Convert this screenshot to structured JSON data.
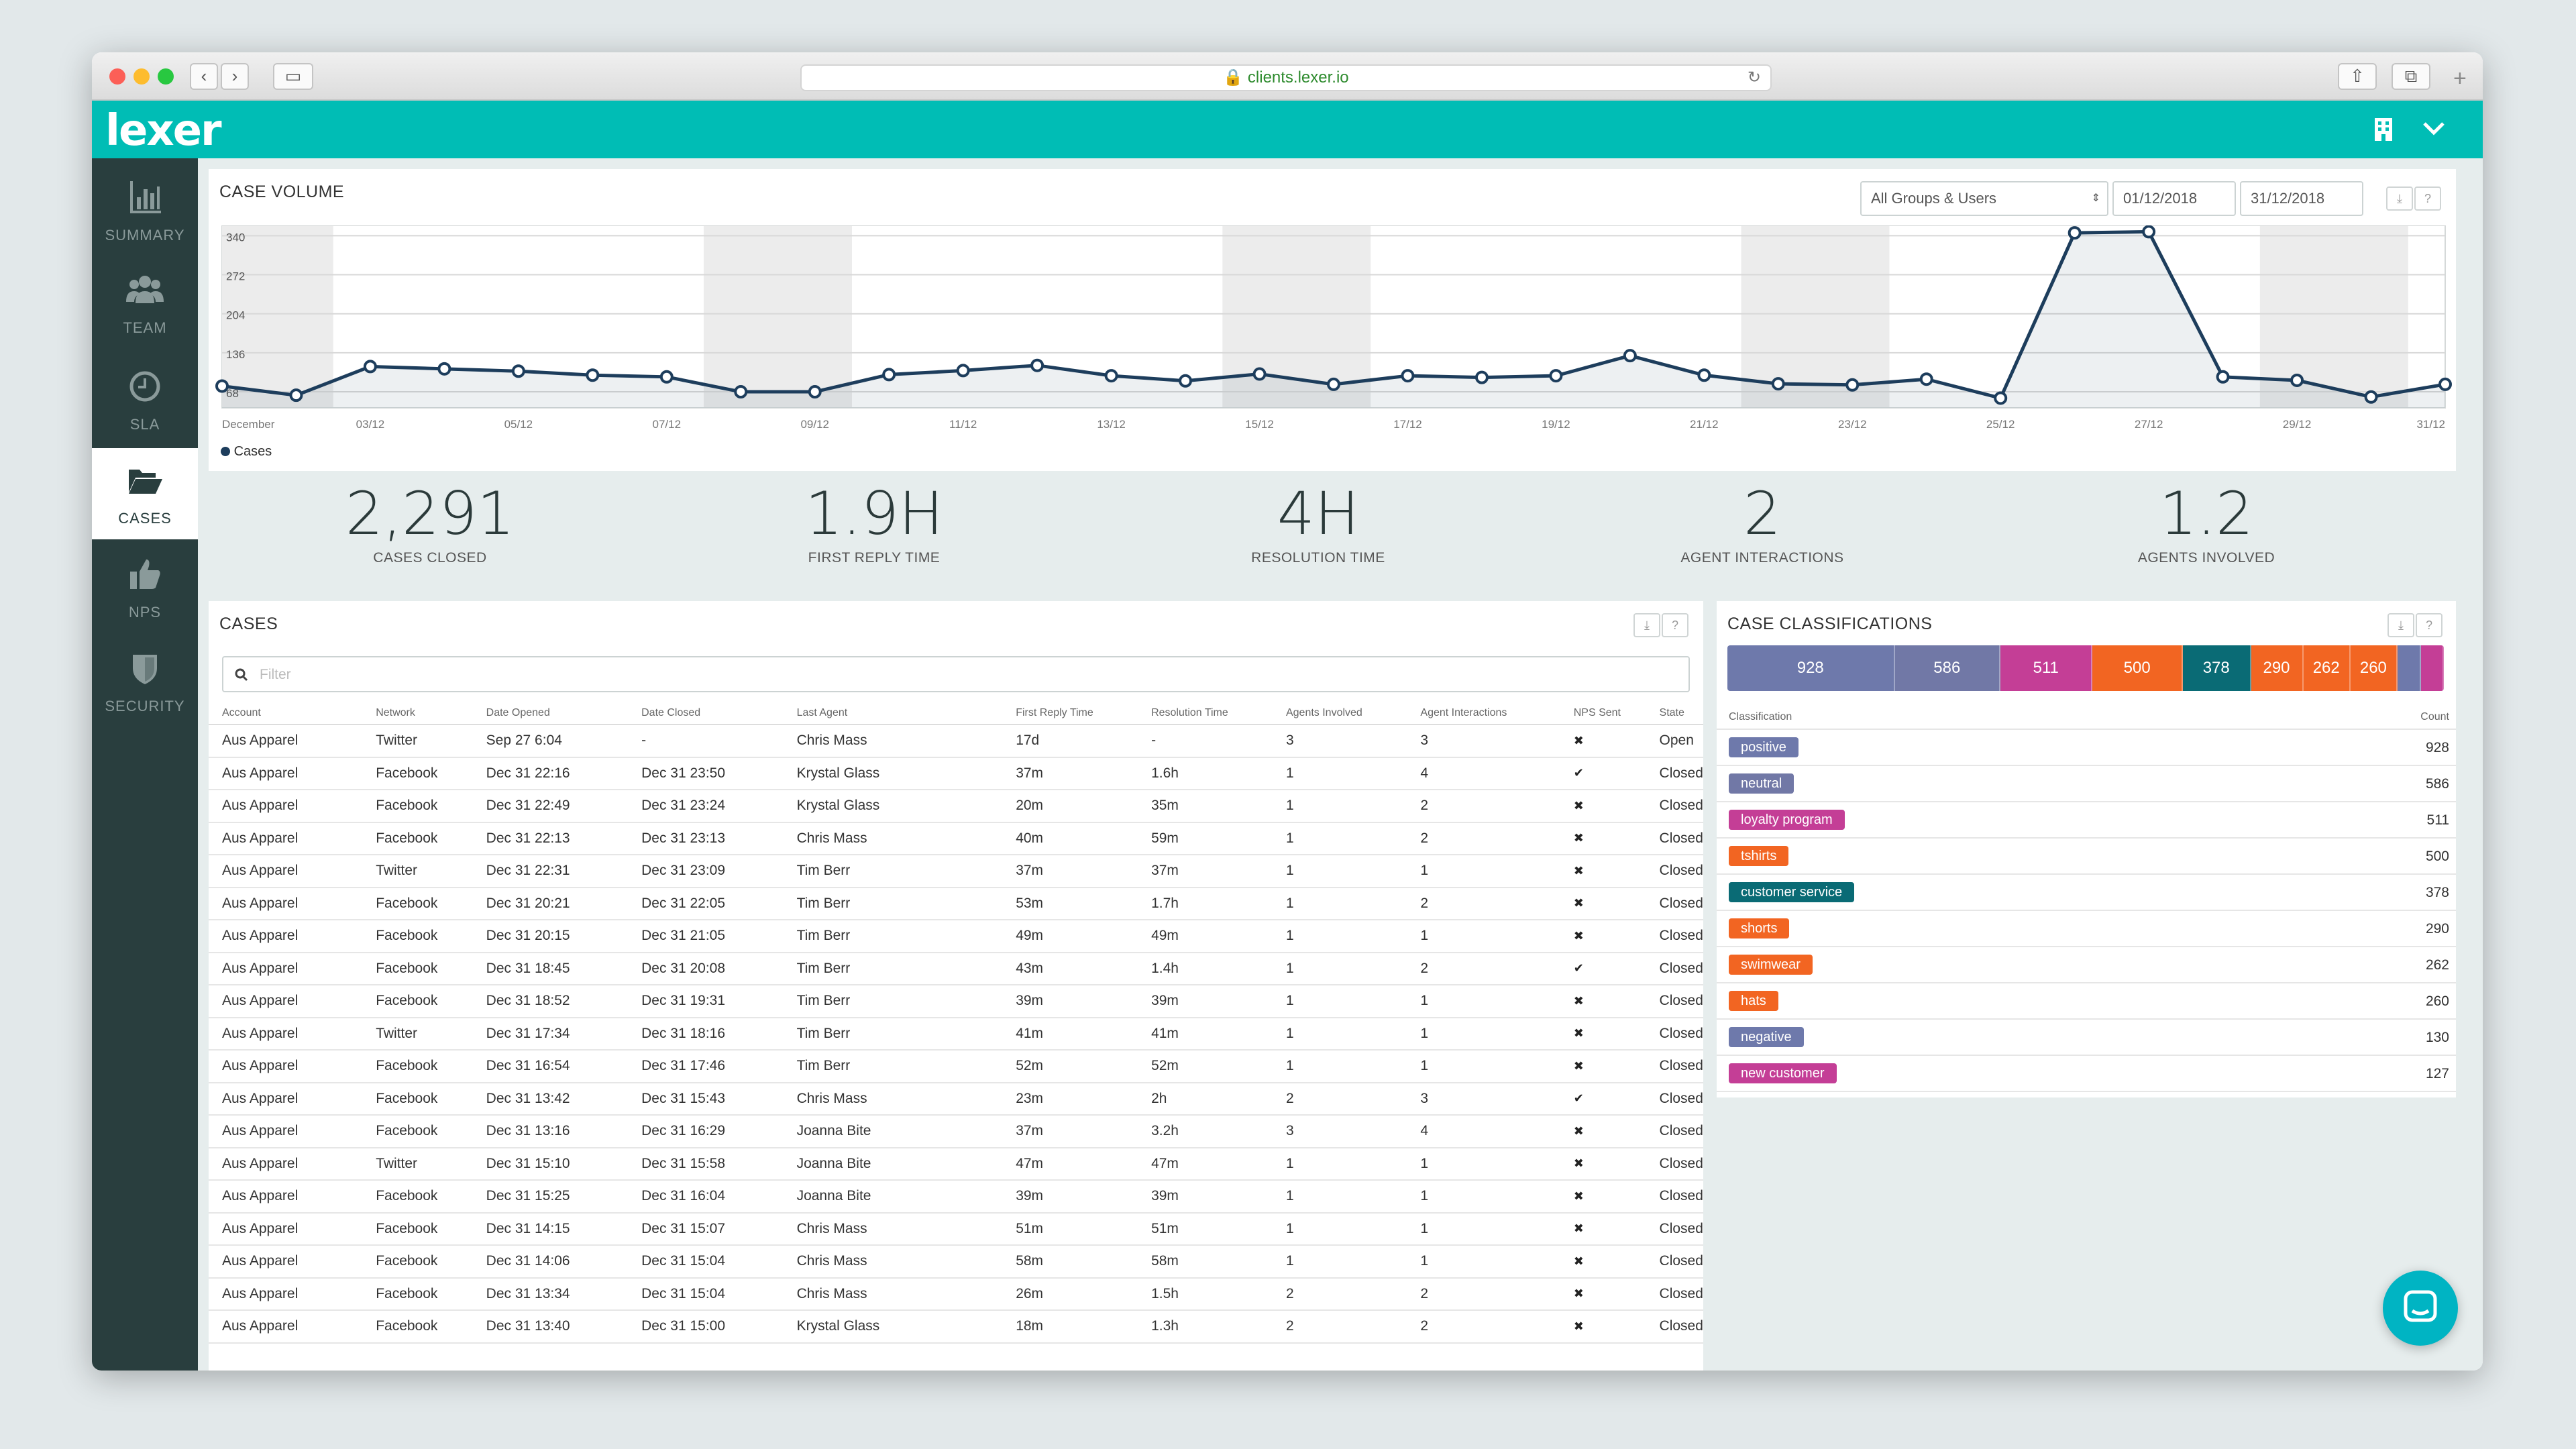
{
  "browser": {
    "url": "clients.lexer.io"
  },
  "app": {
    "logo": "lexer"
  },
  "sidebar": {
    "items": [
      {
        "label": "SUMMARY",
        "icon": "bar-chart-icon"
      },
      {
        "label": "TEAM",
        "icon": "users-icon"
      },
      {
        "label": "SLA",
        "icon": "clock-icon"
      },
      {
        "label": "CASES",
        "icon": "folder-open-icon",
        "active": true
      },
      {
        "label": "NPS",
        "icon": "thumbs-up-icon"
      },
      {
        "label": "SECURITY",
        "icon": "shield-icon"
      }
    ]
  },
  "case_volume": {
    "title": "CASE VOLUME",
    "group_select": "All Groups & Users",
    "date_from": "01/12/2018",
    "date_to": "31/12/2018",
    "download_icon": "⤓",
    "help_icon": "?"
  },
  "chart_data": {
    "type": "line",
    "title": "CASE VOLUME",
    "x_tick_labels": [
      "December",
      "03/12",
      "05/12",
      "07/12",
      "09/12",
      "11/12",
      "13/12",
      "15/12",
      "17/12",
      "19/12",
      "21/12",
      "23/12",
      "25/12",
      "27/12",
      "29/12",
      "31/12"
    ],
    "y_tick_labels": [
      "340",
      "272",
      "204",
      "136",
      "68"
    ],
    "ylim": [
      40,
      358
    ],
    "grid": true,
    "legend": "bottom-left",
    "series": [
      {
        "name": "Cases",
        "color": "#1d3d5c",
        "x": [
          1,
          2,
          3,
          4,
          5,
          6,
          7,
          8,
          9,
          10,
          11,
          12,
          13,
          14,
          15,
          16,
          17,
          18,
          19,
          20,
          21,
          22,
          23,
          24,
          25,
          26,
          27,
          28,
          29,
          30,
          31
        ],
        "values": [
          78,
          62,
          112,
          108,
          104,
          97,
          94,
          68,
          68,
          98,
          105,
          114,
          96,
          87,
          99,
          81,
          96,
          93,
          96,
          131,
          97,
          82,
          80,
          90,
          57,
          345,
          347,
          94,
          88,
          59,
          81
        ]
      }
    ]
  },
  "stats": [
    {
      "value": "2,291",
      "label": "CASES CLOSED"
    },
    {
      "value": "1.9H",
      "label": "FIRST REPLY TIME"
    },
    {
      "value": "4H",
      "label": "RESOLUTION TIME"
    },
    {
      "value": "2",
      "label": "AGENT INTERACTIONS"
    },
    {
      "value": "1.2",
      "label": "AGENTS INVOLVED"
    }
  ],
  "cases": {
    "title": "CASES",
    "filter_placeholder": "Filter",
    "columns": [
      "Account",
      "Network",
      "Date Opened",
      "Date Closed",
      "Last Agent",
      "First Reply Time",
      "Resolution Time",
      "Agents Involved",
      "Agent Interactions",
      "NPS Sent",
      "State"
    ],
    "rows": [
      [
        "Aus Apparel",
        "Twitter",
        "Sep 27 6:04",
        "-",
        "Chris Mass",
        "17d",
        "-",
        "3",
        "3",
        "✖",
        "Open"
      ],
      [
        "Aus Apparel",
        "Facebook",
        "Dec 31 22:16",
        "Dec 31 23:50",
        "Krystal Glass",
        "37m",
        "1.6h",
        "1",
        "4",
        "✔",
        "Closed"
      ],
      [
        "Aus Apparel",
        "Facebook",
        "Dec 31 22:49",
        "Dec 31 23:24",
        "Krystal Glass",
        "20m",
        "35m",
        "1",
        "2",
        "✖",
        "Closed"
      ],
      [
        "Aus Apparel",
        "Facebook",
        "Dec 31 22:13",
        "Dec 31 23:13",
        "Chris Mass",
        "40m",
        "59m",
        "1",
        "2",
        "✖",
        "Closed"
      ],
      [
        "Aus Apparel",
        "Twitter",
        "Dec 31 22:31",
        "Dec 31 23:09",
        "Tim Berr",
        "37m",
        "37m",
        "1",
        "1",
        "✖",
        "Closed"
      ],
      [
        "Aus Apparel",
        "Facebook",
        "Dec 31 20:21",
        "Dec 31 22:05",
        "Tim Berr",
        "53m",
        "1.7h",
        "1",
        "2",
        "✖",
        "Closed"
      ],
      [
        "Aus Apparel",
        "Facebook",
        "Dec 31 20:15",
        "Dec 31 21:05",
        "Tim Berr",
        "49m",
        "49m",
        "1",
        "1",
        "✖",
        "Closed"
      ],
      [
        "Aus Apparel",
        "Facebook",
        "Dec 31 18:45",
        "Dec 31 20:08",
        "Tim Berr",
        "43m",
        "1.4h",
        "1",
        "2",
        "✔",
        "Closed"
      ],
      [
        "Aus Apparel",
        "Facebook",
        "Dec 31 18:52",
        "Dec 31 19:31",
        "Tim Berr",
        "39m",
        "39m",
        "1",
        "1",
        "✖",
        "Closed"
      ],
      [
        "Aus Apparel",
        "Twitter",
        "Dec 31 17:34",
        "Dec 31 18:16",
        "Tim Berr",
        "41m",
        "41m",
        "1",
        "1",
        "✖",
        "Closed"
      ],
      [
        "Aus Apparel",
        "Facebook",
        "Dec 31 16:54",
        "Dec 31 17:46",
        "Tim Berr",
        "52m",
        "52m",
        "1",
        "1",
        "✖",
        "Closed"
      ],
      [
        "Aus Apparel",
        "Facebook",
        "Dec 31 13:42",
        "Dec 31 15:43",
        "Chris Mass",
        "23m",
        "2h",
        "2",
        "3",
        "✔",
        "Closed"
      ],
      [
        "Aus Apparel",
        "Facebook",
        "Dec 31 13:16",
        "Dec 31 16:29",
        "Joanna Bite",
        "37m",
        "3.2h",
        "3",
        "4",
        "✖",
        "Closed"
      ],
      [
        "Aus Apparel",
        "Twitter",
        "Dec 31 15:10",
        "Dec 31 15:58",
        "Joanna Bite",
        "47m",
        "47m",
        "1",
        "1",
        "✖",
        "Closed"
      ],
      [
        "Aus Apparel",
        "Facebook",
        "Dec 31 15:25",
        "Dec 31 16:04",
        "Joanna Bite",
        "39m",
        "39m",
        "1",
        "1",
        "✖",
        "Closed"
      ],
      [
        "Aus Apparel",
        "Facebook",
        "Dec 31 14:15",
        "Dec 31 15:07",
        "Chris Mass",
        "51m",
        "51m",
        "1",
        "1",
        "✖",
        "Closed"
      ],
      [
        "Aus Apparel",
        "Facebook",
        "Dec 31 14:06",
        "Dec 31 15:04",
        "Chris Mass",
        "58m",
        "58m",
        "1",
        "1",
        "✖",
        "Closed"
      ],
      [
        "Aus Apparel",
        "Facebook",
        "Dec 31 13:34",
        "Dec 31 15:04",
        "Chris Mass",
        "26m",
        "1.5h",
        "2",
        "2",
        "✖",
        "Closed"
      ],
      [
        "Aus Apparel",
        "Facebook",
        "Dec 31 13:40",
        "Dec 31 15:00",
        "Krystal Glass",
        "18m",
        "1.3h",
        "2",
        "2",
        "✖",
        "Closed"
      ]
    ]
  },
  "classifications": {
    "title": "CASE CLASSIFICATIONS",
    "col_classification": "Classification",
    "col_count": "Count",
    "items": [
      {
        "name": "positive",
        "count": "928",
        "value": 928,
        "color": "#6e79ab",
        "bar_label": "928"
      },
      {
        "name": "neutral",
        "count": "586",
        "value": 586,
        "color": "#7178a6",
        "bar_label": "586"
      },
      {
        "name": "loyalty program",
        "count": "511",
        "value": 511,
        "color": "#c43e96",
        "bar_label": "511"
      },
      {
        "name": "tshirts",
        "count": "500",
        "value": 500,
        "color": "#f26522",
        "bar_label": "500"
      },
      {
        "name": "customer service",
        "count": "378",
        "value": 378,
        "color": "#0a6b75",
        "bar_label": "378"
      },
      {
        "name": "shorts",
        "count": "290",
        "value": 290,
        "color": "#f26522",
        "bar_label": "290"
      },
      {
        "name": "swimwear",
        "count": "262",
        "value": 262,
        "color": "#f26522",
        "bar_label": "262"
      },
      {
        "name": "hats",
        "count": "260",
        "value": 260,
        "color": "#f26522",
        "bar_label": "260"
      },
      {
        "name": "negative",
        "count": "130",
        "value": 130,
        "color": "#6e79ab",
        "bar_label": ""
      },
      {
        "name": "new customer",
        "count": "127",
        "value": 127,
        "color": "#c43e96",
        "bar_label": ""
      }
    ]
  }
}
